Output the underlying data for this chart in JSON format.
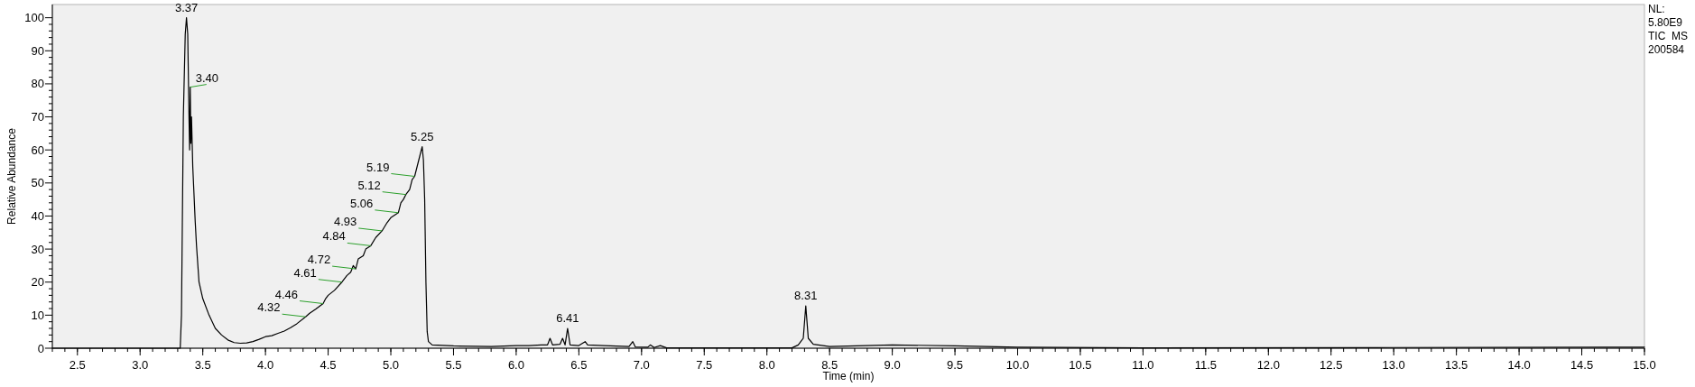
{
  "chart_data": {
    "type": "line",
    "xlabel": "Time (min)",
    "ylabel": "Relative Abundance",
    "xlim": [
      2.3,
      15.0
    ],
    "ylim": [
      0,
      104
    ],
    "xticks": [
      2.5,
      {
        "value": 3,
        "label": "3.0"
      },
      3.5,
      {
        "value": 4,
        "label": "4.0"
      },
      4.5,
      {
        "value": 5,
        "label": "5.0"
      },
      5.5,
      {
        "value": 6,
        "label": "6.0"
      },
      6.5,
      {
        "value": 7,
        "label": "7.0"
      },
      7.5,
      {
        "value": 8,
        "label": "8.0"
      },
      8.5,
      {
        "value": 9,
        "label": "9.0"
      },
      9.5,
      {
        "value": 10,
        "label": "10.0"
      },
      10.5,
      {
        "value": 11,
        "label": "11.0"
      },
      11.5,
      {
        "value": 12,
        "label": "12.0"
      },
      12.5,
      {
        "value": 13,
        "label": "13.0"
      },
      13.5,
      {
        "value": 14,
        "label": "14.0"
      },
      14.5,
      {
        "value": 15,
        "label": "15.0"
      }
    ],
    "yticks": [
      0,
      10,
      20,
      30,
      40,
      50,
      60,
      70,
      80,
      90,
      100
    ],
    "grid": false,
    "marker": "none",
    "line_style": "solid",
    "series": [
      {
        "color": "#000000",
        "x": [
          2.3,
          3.32,
          3.33,
          3.345,
          3.36,
          3.37,
          3.38,
          3.39,
          3.395,
          3.4,
          3.405,
          3.41,
          3.42,
          3.44,
          3.45,
          3.47,
          3.5,
          3.55,
          3.6,
          3.65,
          3.7,
          3.75,
          3.8,
          3.85,
          3.9,
          3.95,
          4.0,
          4.05,
          4.1,
          4.15,
          4.2,
          4.25,
          4.32,
          4.35,
          4.4,
          4.46,
          4.48,
          4.5,
          4.55,
          4.61,
          4.65,
          4.68,
          4.7,
          4.72,
          4.74,
          4.78,
          4.8,
          4.84,
          4.88,
          4.93,
          4.97,
          5.0,
          5.06,
          5.08,
          5.1,
          5.12,
          5.15,
          5.17,
          5.19,
          5.21,
          5.23,
          5.25,
          5.26,
          5.27,
          5.28,
          5.29,
          5.3,
          5.33,
          5.5,
          5.8,
          6.0,
          6.1,
          6.2,
          6.25,
          6.27,
          6.29,
          6.35,
          6.37,
          6.39,
          6.41,
          6.43,
          6.5,
          6.55,
          6.57,
          6.7,
          6.9,
          6.93,
          6.95,
          7.05,
          7.07,
          7.1,
          7.15,
          7.2,
          8.2,
          8.25,
          8.27,
          8.29,
          8.31,
          8.33,
          8.37,
          8.5,
          9.0,
          9.5,
          10.0,
          11.0,
          13.0,
          15.0
        ],
        "values": [
          0,
          0,
          10,
          70,
          95,
          100,
          95,
          70,
          60,
          79,
          62,
          70,
          55,
          38,
          31,
          20,
          15,
          10,
          6,
          4,
          2.5,
          1.7,
          1.5,
          1.6,
          2,
          2.7,
          3.5,
          3.8,
          4.5,
          5.2,
          6.2,
          7.4,
          9.5,
          10.5,
          11.8,
          13.5,
          15,
          16,
          17.5,
          20,
          22,
          23,
          25,
          24,
          27,
          28,
          30,
          31,
          33.5,
          35.5,
          38,
          39.5,
          41,
          44,
          45,
          46.5,
          48,
          51,
          52,
          55,
          58,
          61,
          57,
          45,
          20,
          5,
          2,
          1,
          0.7,
          0.5,
          0.8,
          0.8,
          1,
          1,
          3,
          1,
          1.2,
          3,
          1,
          6,
          1,
          0.8,
          2,
          1,
          0.8,
          0.5,
          2,
          0.4,
          0.3,
          1,
          0.2,
          0.8,
          0.1,
          0.1,
          1,
          2,
          3,
          12.8,
          3,
          1.2,
          0.5,
          1,
          0.7,
          0.3,
          0.1,
          0.2,
          0.3
        ]
      }
    ],
    "annotations": [
      {
        "text": "3.37",
        "x": 3.37,
        "y": 100
      },
      {
        "text": "3.40",
        "x": 3.4,
        "y": 79
      },
      {
        "text": "4.32",
        "x": 4.32,
        "y": 9.5
      },
      {
        "text": "4.46",
        "x": 4.46,
        "y": 13.5
      },
      {
        "text": "4.61",
        "x": 4.61,
        "y": 20
      },
      {
        "text": "4.72",
        "x": 4.72,
        "y": 24
      },
      {
        "text": "4.84",
        "x": 4.84,
        "y": 31
      },
      {
        "text": "4.93",
        "x": 4.93,
        "y": 35.5
      },
      {
        "text": "5.06",
        "x": 5.06,
        "y": 41
      },
      {
        "text": "5.12",
        "x": 5.12,
        "y": 46.5
      },
      {
        "text": "5.19",
        "x": 5.19,
        "y": 52
      },
      {
        "text": "5.25",
        "x": 5.25,
        "y": 61
      },
      {
        "text": "6.41",
        "x": 6.41,
        "y": 6
      },
      {
        "text": "8.31",
        "x": 8.31,
        "y": 12.8
      },
      "NL:",
      "5.80E9",
      "TIC  MS",
      "200584"
    ]
  }
}
